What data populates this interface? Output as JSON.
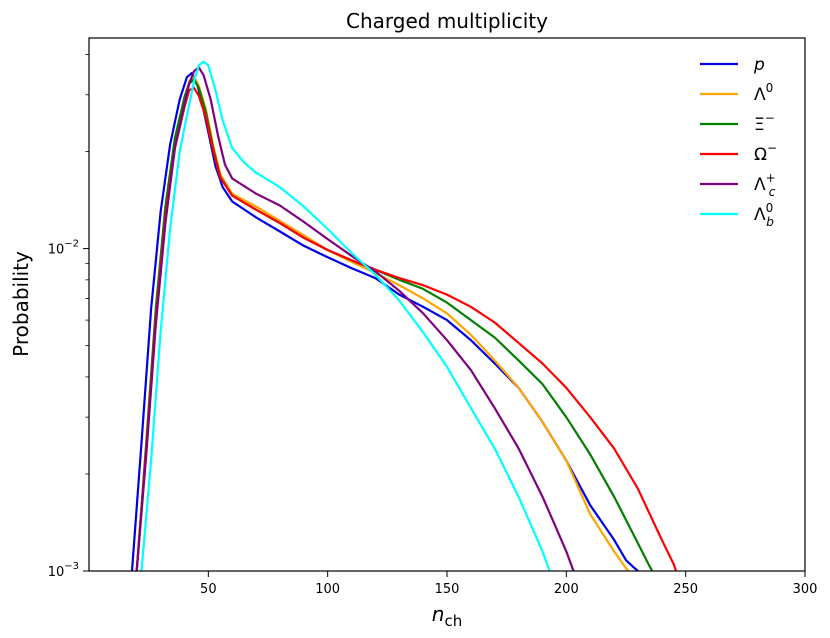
{
  "chart_data": {
    "type": "line",
    "title": "Charged multiplicity",
    "xlabel": "n",
    "xlabel_sub": "ch",
    "ylabel": "Probability",
    "yscale": "log",
    "xlim": [
      0,
      300
    ],
    "ylim": [
      0.001,
      0.045
    ],
    "xticks": [
      50,
      100,
      150,
      200,
      250,
      300
    ],
    "yticks": [
      {
        "value": 0.001,
        "base": "10",
        "exp": "−3"
      },
      {
        "value": 0.01,
        "base": "10",
        "exp": "−2"
      }
    ],
    "grid": false,
    "legend_position": "top-right",
    "series": [
      {
        "key": "p",
        "name_main": "p",
        "name_sup": "",
        "name_sub": "",
        "italic": true,
        "color": "#0000e6",
        "x": [
          18,
          22,
          26,
          30,
          34,
          38,
          41,
          43,
          45,
          47,
          50,
          53,
          56,
          60,
          70,
          80,
          90,
          100,
          110,
          120,
          130,
          140,
          150,
          160,
          170,
          180,
          190,
          200,
          210,
          220,
          225,
          228,
          230
        ],
        "y": [
          0.001,
          0.0025,
          0.0065,
          0.013,
          0.021,
          0.029,
          0.034,
          0.035,
          0.033,
          0.029,
          0.023,
          0.018,
          0.0155,
          0.014,
          0.0125,
          0.0113,
          0.0102,
          0.0094,
          0.0087,
          0.0081,
          0.0072,
          0.0066,
          0.006,
          0.0052,
          0.0044,
          0.0037,
          0.0029,
          0.0022,
          0.0016,
          0.00125,
          0.00108,
          0.00103,
          0.001
        ]
      },
      {
        "key": "lambda0",
        "name_main": "Λ",
        "name_sup": "0",
        "name_sub": "",
        "italic": false,
        "color": "#ffa500",
        "x": [
          20,
          24,
          28,
          32,
          36,
          40,
          42,
          44,
          46,
          49,
          52,
          55,
          60,
          70,
          80,
          90,
          100,
          110,
          120,
          130,
          140,
          150,
          160,
          170,
          180,
          190,
          200,
          210,
          220,
          225,
          226
        ],
        "y": [
          0.001,
          0.0025,
          0.0065,
          0.0135,
          0.022,
          0.0295,
          0.033,
          0.034,
          0.032,
          0.027,
          0.021,
          0.017,
          0.0148,
          0.0135,
          0.0122,
          0.011,
          0.0099,
          0.0091,
          0.0084,
          0.0077,
          0.007,
          0.0063,
          0.0054,
          0.0045,
          0.0037,
          0.0029,
          0.0022,
          0.0015,
          0.00115,
          0.00102,
          0.001
        ]
      },
      {
        "key": "xi",
        "name_main": "Ξ",
        "name_sup": "−",
        "name_sub": "",
        "italic": false,
        "color": "#008000",
        "x": [
          20,
          24,
          28,
          32,
          36,
          40,
          42,
          44,
          46,
          49,
          52,
          55,
          60,
          70,
          80,
          90,
          100,
          110,
          120,
          130,
          140,
          150,
          160,
          170,
          180,
          190,
          200,
          210,
          220,
          230,
          235,
          236
        ],
        "y": [
          0.001,
          0.0025,
          0.0065,
          0.0135,
          0.022,
          0.0295,
          0.0325,
          0.0335,
          0.0315,
          0.0265,
          0.0205,
          0.0167,
          0.0146,
          0.0132,
          0.012,
          0.0108,
          0.0099,
          0.0092,
          0.0086,
          0.008,
          0.0075,
          0.0068,
          0.006,
          0.0053,
          0.0045,
          0.0038,
          0.003,
          0.0023,
          0.0017,
          0.00122,
          0.00103,
          0.001
        ]
      },
      {
        "key": "omega",
        "name_main": "Ω",
        "name_sup": "−",
        "name_sub": "",
        "italic": false,
        "color": "#ff0000",
        "x": [
          20,
          24,
          28,
          32,
          36,
          40,
          42,
          44,
          46,
          49,
          52,
          55,
          60,
          70,
          80,
          90,
          100,
          110,
          120,
          130,
          140,
          150,
          160,
          170,
          180,
          190,
          200,
          210,
          220,
          230,
          240,
          245,
          246
        ],
        "y": [
          0.001,
          0.0024,
          0.006,
          0.0125,
          0.0205,
          0.0275,
          0.031,
          0.0315,
          0.0298,
          0.0255,
          0.0202,
          0.0166,
          0.0146,
          0.0132,
          0.012,
          0.0108,
          0.0099,
          0.0092,
          0.0086,
          0.0081,
          0.0077,
          0.0072,
          0.0066,
          0.0059,
          0.0051,
          0.0044,
          0.0037,
          0.003,
          0.0024,
          0.0018,
          0.00125,
          0.00105,
          0.001
        ]
      },
      {
        "key": "lambdac",
        "name_main": "Λ",
        "name_sup": "+",
        "name_sub": "c",
        "italic": false,
        "color": "#800080",
        "x": [
          20,
          24,
          28,
          32,
          36,
          40,
          42,
          44,
          46,
          48,
          51,
          54,
          57,
          60,
          70,
          80,
          90,
          100,
          110,
          120,
          130,
          140,
          150,
          160,
          170,
          180,
          190,
          195,
          200,
          203
        ],
        "y": [
          0.001,
          0.0023,
          0.0058,
          0.012,
          0.0205,
          0.028,
          0.0325,
          0.0355,
          0.0365,
          0.0345,
          0.029,
          0.0225,
          0.0182,
          0.0165,
          0.0148,
          0.0136,
          0.0121,
          0.0107,
          0.0095,
          0.0085,
          0.0074,
          0.0063,
          0.0052,
          0.0042,
          0.0032,
          0.0024,
          0.0017,
          0.0014,
          0.00115,
          0.001
        ]
      },
      {
        "key": "lambdab",
        "name_main": "Λ",
        "name_sup": "0",
        "name_sub": "b",
        "italic": false,
        "color": "#00ffff",
        "x": [
          22,
          26,
          30,
          34,
          38,
          42,
          44,
          46,
          48,
          50,
          53,
          56,
          60,
          65,
          70,
          80,
          90,
          100,
          110,
          120,
          130,
          140,
          150,
          160,
          170,
          180,
          185,
          190,
          193
        ],
        "y": [
          0.001,
          0.0022,
          0.0055,
          0.0115,
          0.02,
          0.028,
          0.033,
          0.037,
          0.038,
          0.037,
          0.031,
          0.025,
          0.0205,
          0.0185,
          0.0172,
          0.0155,
          0.0135,
          0.0115,
          0.0097,
          0.0083,
          0.0069,
          0.0055,
          0.0043,
          0.0032,
          0.0024,
          0.0017,
          0.0014,
          0.00115,
          0.001
        ]
      }
    ]
  }
}
